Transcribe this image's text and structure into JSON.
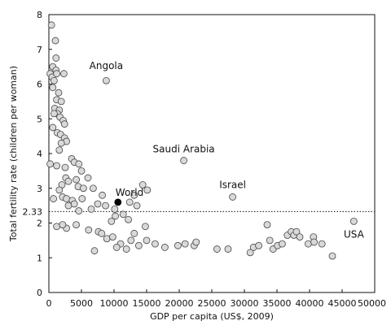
{
  "chart_data": {
    "type": "scatter",
    "title": "",
    "xlabel": "GDP per capita (US$, 2009)",
    "ylabel": "Total fertility rate (children per woman)",
    "xlim": [
      0,
      50000
    ],
    "ylim": [
      0,
      8
    ],
    "xticks": [
      0,
      5000,
      10000,
      15000,
      20000,
      25000,
      30000,
      35000,
      40000,
      45000,
      50000
    ],
    "yticks": [
      0,
      1,
      2,
      3,
      4,
      5,
      6,
      7,
      8
    ],
    "grid": false,
    "reference_line": {
      "y": 2.33,
      "label": "2.33",
      "style": "dotted"
    },
    "highlight": {
      "name": "World",
      "x": 10600,
      "y": 2.6
    },
    "annotations": [
      {
        "text": "Angola",
        "x": 8800,
        "y": 6.1
      },
      {
        "text": "Saudi Arabia",
        "x": 20700,
        "y": 3.8
      },
      {
        "text": "Israel",
        "x": 28200,
        "y": 2.75
      },
      {
        "text": "USA",
        "x": 46800,
        "y": 2.05
      }
    ],
    "points": [
      [
        400,
        7.7
      ],
      [
        1000,
        7.25
      ],
      [
        1100,
        6.75
      ],
      [
        600,
        6.5
      ],
      [
        1100,
        6.4
      ],
      [
        200,
        6.3
      ],
      [
        500,
        6.2
      ],
      [
        1200,
        6.3
      ],
      [
        2300,
        6.3
      ],
      [
        800,
        6.1
      ],
      [
        600,
        5.9
      ],
      [
        1500,
        5.75
      ],
      [
        1200,
        5.55
      ],
      [
        1900,
        5.5
      ],
      [
        900,
        5.3
      ],
      [
        1600,
        5.25
      ],
      [
        1300,
        5.15
      ],
      [
        800,
        5.15
      ],
      [
        1700,
        5.05
      ],
      [
        2200,
        4.95
      ],
      [
        600,
        4.75
      ],
      [
        2400,
        4.85
      ],
      [
        1300,
        4.6
      ],
      [
        1800,
        4.55
      ],
      [
        2400,
        4.45
      ],
      [
        2700,
        4.35
      ],
      [
        1900,
        4.3
      ],
      [
        1600,
        4.1
      ],
      [
        3500,
        3.85
      ],
      [
        3900,
        3.75
      ],
      [
        4600,
        3.7
      ],
      [
        5000,
        3.5
      ],
      [
        6000,
        3.3
      ],
      [
        200,
        3.7
      ],
      [
        1200,
        3.65
      ],
      [
        2500,
        3.6
      ],
      [
        2600,
        3.3
      ],
      [
        2000,
        3.1
      ],
      [
        3000,
        3.2
      ],
      [
        4200,
        3.25
      ],
      [
        4500,
        3.05
      ],
      [
        5300,
        3.0
      ],
      [
        6800,
        3.0
      ],
      [
        1600,
        2.95
      ],
      [
        700,
        2.7
      ],
      [
        2100,
        2.75
      ],
      [
        2700,
        2.7
      ],
      [
        3600,
        2.65
      ],
      [
        5100,
        2.7
      ],
      [
        3000,
        2.5
      ],
      [
        3900,
        2.55
      ],
      [
        4600,
        2.35
      ],
      [
        6500,
        2.4
      ],
      [
        7500,
        2.55
      ],
      [
        8200,
        2.8
      ],
      [
        8700,
        2.5
      ],
      [
        10100,
        2.4
      ],
      [
        11400,
        2.25
      ],
      [
        12400,
        2.6
      ],
      [
        13100,
        2.8
      ],
      [
        14400,
        3.1
      ],
      [
        15100,
        2.95
      ],
      [
        13500,
        2.5
      ],
      [
        12200,
        2.1
      ],
      [
        9600,
        2.05
      ],
      [
        14800,
        1.9
      ],
      [
        4200,
        1.95
      ],
      [
        2700,
        1.85
      ],
      [
        1200,
        1.9
      ],
      [
        2100,
        1.95
      ],
      [
        6100,
        1.8
      ],
      [
        7600,
        1.75
      ],
      [
        8100,
        1.7
      ],
      [
        8900,
        1.55
      ],
      [
        9800,
        1.6
      ],
      [
        10200,
        2.2
      ],
      [
        11000,
        1.4
      ],
      [
        11900,
        1.25
      ],
      [
        12600,
        1.5
      ],
      [
        13100,
        1.7
      ],
      [
        13800,
        1.35
      ],
      [
        15000,
        1.5
      ],
      [
        16300,
        1.4
      ],
      [
        17800,
        1.3
      ],
      [
        19800,
        1.35
      ],
      [
        20900,
        1.4
      ],
      [
        22300,
        1.35
      ],
      [
        22600,
        1.45
      ],
      [
        25800,
        1.25
      ],
      [
        27500,
        1.25
      ],
      [
        30900,
        1.15
      ],
      [
        31400,
        1.3
      ],
      [
        32200,
        1.35
      ],
      [
        33500,
        1.95
      ],
      [
        33900,
        1.5
      ],
      [
        34400,
        1.25
      ],
      [
        35100,
        1.35
      ],
      [
        35800,
        1.4
      ],
      [
        36600,
        1.65
      ],
      [
        37200,
        1.75
      ],
      [
        37600,
        1.65
      ],
      [
        38000,
        1.75
      ],
      [
        38500,
        1.6
      ],
      [
        39800,
        1.4
      ],
      [
        40600,
        1.6
      ],
      [
        40700,
        1.45
      ],
      [
        41900,
        1.4
      ],
      [
        43500,
        1.05
      ],
      [
        7000,
        1.2
      ],
      [
        10400,
        1.3
      ]
    ]
  }
}
